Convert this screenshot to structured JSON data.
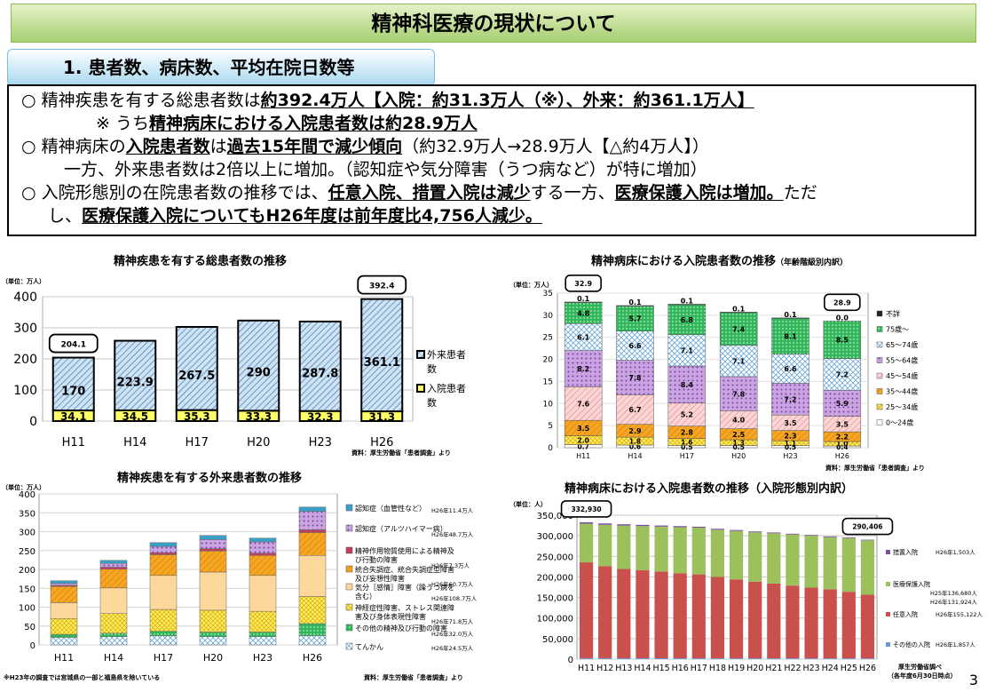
{
  "title": "精神科医療の現状について",
  "section_tab": "1. 患者数、病床数、平均在院日数等",
  "summary": {
    "line1": {
      "bullet": "○",
      "pre": " 精神疾患を有する総患者数は",
      "em": "約392.4万人【入院：約31.3万人（※）、外来：約361.1万人】"
    },
    "line2": {
      "pre": "※ うち",
      "em": "精神病床における入院患者数は約28.9万人"
    },
    "line3": {
      "bullet": "○",
      "pre": " 精神病床の",
      "em1": "入院患者数",
      "mid": "は",
      "em2": "過去15年間で減少傾向",
      "post": "（約32.9万人→28.9万人【△約4万人】）"
    },
    "line4": "一方、外来患者数は2倍以上に増加。（認知症や気分障害（うつ病など）が特に増加）",
    "line5": {
      "bullet": "○",
      "pre": " 入院形態別の在院患者数の推移では、",
      "em1": "任意入院、措置入院は減少",
      "mid": "する一方、",
      "em2": "医療保護入院は増加。",
      "post": "ただ"
    },
    "line6": {
      "pre": "し、",
      "em": "医療保護入院についてもH26年度は前年度比4,756人減少。"
    }
  },
  "source_kanja": "資料：厚生労働省「患者調査」より",
  "source_eisei": "厚生労働省調べ",
  "source_eisei2": "（各年度6月30日時点）",
  "page_number": "3",
  "chart_data": [
    {
      "id": "total",
      "type": "bar",
      "title": "精神疾患を有する総患者数の推移",
      "unit_label": "（単位：万人）",
      "categories": [
        "H11",
        "H14",
        "H17",
        "H20",
        "H23",
        "H26"
      ],
      "ylim": [
        0,
        400
      ],
      "yticks": [
        0,
        100,
        200,
        300,
        400
      ],
      "series": [
        {
          "name": "入院患者数",
          "values": [
            34.1,
            34.5,
            35.3,
            33.3,
            32.3,
            31.3
          ],
          "color": "#ffff66"
        },
        {
          "name": "外来患者数",
          "values": [
            170,
            223.9,
            267.5,
            290,
            287.8,
            361.1
          ],
          "color": "#b7d6ee"
        }
      ],
      "callouts": [
        {
          "index": 0,
          "text": "204.1"
        },
        {
          "index": 5,
          "text": "392.4"
        }
      ],
      "legend": "right"
    },
    {
      "id": "age",
      "type": "bar",
      "title": "精神病床における入院患者数の推移",
      "title_suffix": "（年齢階級別内訳）",
      "unit_label": "（単位：万人）",
      "categories": [
        "H11",
        "H14",
        "H17",
        "H20",
        "H23",
        "H26"
      ],
      "ylim": [
        0,
        35
      ],
      "yticks": [
        0,
        5,
        10,
        15,
        20,
        25,
        30,
        35
      ],
      "series": [
        {
          "name": "0〜24歳",
          "values": [
            0.7,
            0.6,
            0.5,
            0.5,
            0.5,
            0.4
          ],
          "color": "#ffffff"
        },
        {
          "name": "25〜34歳",
          "values": [
            2.0,
            1.8,
            1.6,
            1.3,
            1.1,
            1.0
          ],
          "color": "#ffee66"
        },
        {
          "name": "35〜44歳",
          "values": [
            3.5,
            2.9,
            2.8,
            2.5,
            2.3,
            2.2
          ],
          "color": "#f5a623"
        },
        {
          "name": "45〜54歳",
          "values": [
            7.6,
            6.7,
            5.2,
            4.0,
            3.5,
            3.5
          ],
          "color": "#f8c4c4"
        },
        {
          "name": "55〜64歳",
          "values": [
            8.2,
            7.8,
            8.4,
            7.8,
            7.2,
            5.9
          ],
          "color": "#c9a4e0"
        },
        {
          "name": "65〜74歳",
          "values": [
            6.1,
            6.6,
            7.1,
            7.1,
            6.6,
            7.2
          ],
          "color": "#dcecf8"
        },
        {
          "name": "75歳〜",
          "values": [
            4.8,
            5.7,
            6.8,
            7.4,
            8.1,
            8.5
          ],
          "color": "#2fb75a"
        },
        {
          "name": "不詳",
          "values": [
            0.1,
            0.1,
            0.1,
            0.1,
            0.1,
            0.0
          ],
          "color": "#222222"
        }
      ],
      "callouts": [
        {
          "index": 0,
          "text": "32.9"
        },
        {
          "index": 5,
          "text": "28.9"
        }
      ],
      "legend": "right"
    },
    {
      "id": "outpatient",
      "type": "bar",
      "title": "精神疾患を有する外来患者数の推移",
      "unit_label": "（単位：万人）",
      "categories": [
        "H11",
        "H14",
        "H17",
        "H20",
        "H23",
        "H26"
      ],
      "ylim": [
        0,
        400
      ],
      "yticks": [
        0,
        50,
        100,
        150,
        200,
        250,
        300,
        350,
        400
      ],
      "series": [
        {
          "name": "てんかん",
          "values": [
            20,
            22,
            24,
            22,
            22,
            24.5
          ],
          "color": "#cfe6f5"
        },
        {
          "name": "その他の精神及び行動の障害",
          "values": [
            8,
            9,
            12,
            12,
            12,
            32
          ],
          "color": "#2db35d"
        },
        {
          "name": "神経症性障害、ストレス関連障害及び身体表現性障害",
          "values": [
            42,
            52,
            58,
            58,
            55,
            71.8
          ],
          "color": "#ffee55"
        },
        {
          "name": "気分［感情］障害（躁うつ病を含む）",
          "values": [
            42,
            68,
            90,
            101,
            95,
            108.7
          ],
          "color": "#fdd89a"
        },
        {
          "name": "統合失調症、統合失調症型障害及び妄想性障害",
          "values": [
            43,
            50,
            55,
            56,
            53,
            60.7
          ],
          "color": "#f5a45a"
        },
        {
          "name": "精神作用物質使用による精神及び行動の障害",
          "values": [
            3,
            5,
            5,
            6,
            6,
            7.3
          ],
          "color": "#c04060"
        },
        {
          "name": "認知症（アルツハイマー病）",
          "values": [
            5,
            10,
            17,
            24,
            30,
            48.7
          ],
          "color": "#c9a0dc"
        },
        {
          "name": "認知症（血管性など）",
          "values": [
            7,
            8,
            10,
            11,
            10,
            11.4
          ],
          "color": "#3aa0c8"
        }
      ],
      "legend_notes": [
        "H26年11.4万人",
        "H26年48.7万人",
        "H26年7.3万人",
        "H26年60.7万人",
        "H26年108.7万人",
        "H26年71.8万人",
        "H26年32.0万人",
        "H26年24.5万人"
      ],
      "footnote": "※H23年の調査では宮城県の一部と福島県を除いている",
      "legend": "right"
    },
    {
      "id": "admission",
      "type": "bar",
      "title": "精神病床における入院患者数の推移（入院形態別内訳）",
      "unit_label": "（単位：人）",
      "categories": [
        "H11",
        "H12",
        "H13",
        "H14",
        "H15",
        "H16",
        "H17",
        "H18",
        "H19",
        "H20",
        "H21",
        "H22",
        "H23",
        "H24",
        "H25",
        "H26"
      ],
      "ylim": [
        0,
        350000
      ],
      "yticks": [
        0,
        50000,
        100000,
        150000,
        200000,
        250000,
        300000,
        350000
      ],
      "totals": [
        332930,
        330000,
        328000,
        326500,
        325000,
        323500,
        322000,
        317000,
        314000,
        310500,
        308000,
        305000,
        302000,
        298500,
        296000,
        290406
      ],
      "series": [
        {
          "name": "その他の入院",
          "values": [
            2400,
            2300,
            2250,
            2200,
            2150,
            2100,
            2050,
            2000,
            1980,
            1960,
            1940,
            1920,
            1900,
            1880,
            1870,
            1857
          ],
          "color": "#6b9bd1"
        },
        {
          "name": "任意入院",
          "values": [
            233000,
            224000,
            217000,
            214000,
            211000,
            207000,
            204000,
            198000,
            192000,
            186000,
            182000,
            177000,
            172000,
            168000,
            162000,
            155122
          ],
          "color": "#c9504c"
        },
        {
          "name": "措置入院",
          "values": [
            3500,
            3300,
            3100,
            2900,
            2700,
            2600,
            2500,
            2300,
            2200,
            2100,
            2000,
            1900,
            1850,
            1800,
            1700,
            1503
          ],
          "color": "#7b4fa0"
        }
      ],
      "residual_series": {
        "name": "医療保護入院",
        "color": "#9bc05c"
      },
      "legend_notes": [
        [
          "H26年1,503人"
        ],
        [
          "H25年136,680人",
          "H26年131,924人"
        ],
        [
          "H26年155,122人"
        ],
        [
          "H26年1,857人"
        ]
      ],
      "callouts": [
        {
          "index": 0,
          "text": "332,930"
        },
        {
          "index": 15,
          "text": "290,406"
        }
      ],
      "legend": "right"
    }
  ]
}
